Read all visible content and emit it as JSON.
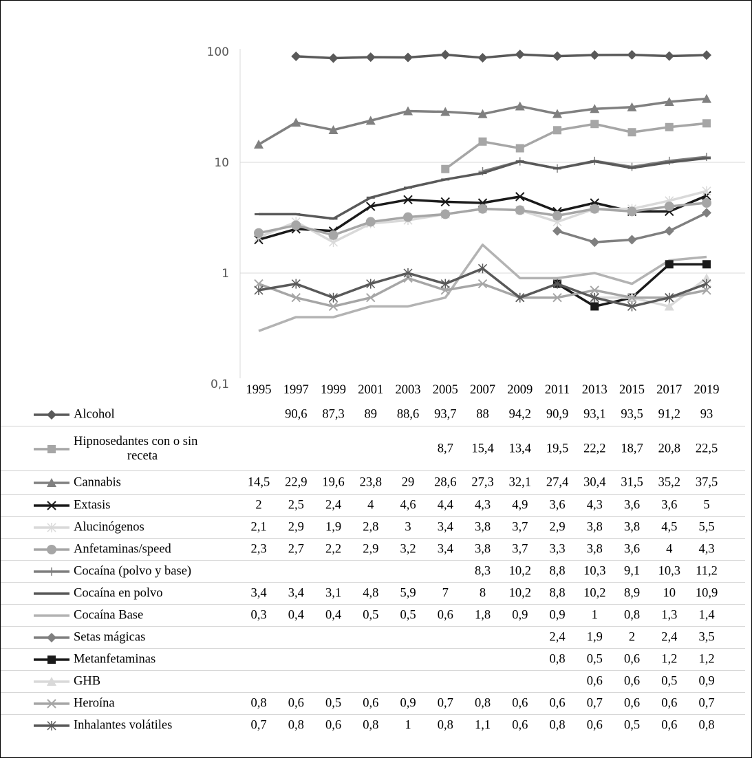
{
  "chart_data": {
    "type": "line",
    "y_scale": "log",
    "ylim": [
      0.1,
      100
    ],
    "ytick_labels": [
      "100",
      "10",
      "1",
      "0,1"
    ],
    "x": [
      "1995",
      "1997",
      "1999",
      "2001",
      "2003",
      "2005",
      "2007",
      "2009",
      "2011",
      "2013",
      "2015",
      "2017",
      "2019"
    ],
    "legend_placement": "data-table-below",
    "series": [
      {
        "name": "Alcohol",
        "color": "#595959",
        "marker": "diamond",
        "values": [
          null,
          90.6,
          87.3,
          89,
          88.6,
          93.7,
          88,
          94.2,
          90.9,
          93.1,
          93.5,
          91.2,
          93
        ],
        "labels": [
          "",
          "90,6",
          "87,3",
          "89",
          "88,6",
          "93,7",
          "88",
          "94,2",
          "90,9",
          "93,1",
          "93,5",
          "91,2",
          "93"
        ]
      },
      {
        "name": "Hipnosedantes con o sin receta",
        "name_lines": [
          "Hipnosedantes con o sin",
          "receta"
        ],
        "color": "#a6a6a6",
        "marker": "square",
        "values": [
          null,
          null,
          null,
          null,
          null,
          8.7,
          15.4,
          13.4,
          19.5,
          22.2,
          18.7,
          20.8,
          22.5
        ],
        "labels": [
          "",
          "",
          "",
          "",
          "",
          "8,7",
          "15,4",
          "13,4",
          "19,5",
          "22,2",
          "18,7",
          "20,8",
          "22,5"
        ]
      },
      {
        "name": "Cannabis",
        "color": "#808080",
        "marker": "triangle",
        "values": [
          14.5,
          22.9,
          19.6,
          23.8,
          29,
          28.6,
          27.3,
          32.1,
          27.4,
          30.4,
          31.5,
          35.2,
          37.5
        ],
        "labels": [
          "14,5",
          "22,9",
          "19,6",
          "23,8",
          "29",
          "28,6",
          "27,3",
          "32,1",
          "27,4",
          "30,4",
          "31,5",
          "35,2",
          "37,5"
        ]
      },
      {
        "name": "Extasis",
        "color": "#1a1a1a",
        "marker": "x",
        "values": [
          2,
          2.5,
          2.4,
          4,
          4.6,
          4.4,
          4.3,
          4.9,
          3.6,
          4.3,
          3.6,
          3.6,
          5
        ],
        "labels": [
          "2",
          "2,5",
          "2,4",
          "4",
          "4,6",
          "4,4",
          "4,3",
          "4,9",
          "3,6",
          "4,3",
          "3,6",
          "3,6",
          "5"
        ]
      },
      {
        "name": "Alucinógenos",
        "color": "#d9d9d9",
        "marker": "asterisk",
        "values": [
          2.1,
          2.9,
          1.9,
          2.8,
          3,
          3.4,
          3.8,
          3.7,
          2.9,
          3.8,
          3.8,
          4.5,
          5.5
        ],
        "labels": [
          "2,1",
          "2,9",
          "1,9",
          "2,8",
          "3",
          "3,4",
          "3,8",
          "3,7",
          "2,9",
          "3,8",
          "3,8",
          "4,5",
          "5,5"
        ]
      },
      {
        "name": "Anfetaminas/speed",
        "color": "#a6a6a6",
        "marker": "circle",
        "values": [
          2.3,
          2.7,
          2.2,
          2.9,
          3.2,
          3.4,
          3.8,
          3.7,
          3.3,
          3.8,
          3.6,
          4,
          4.3
        ],
        "labels": [
          "2,3",
          "2,7",
          "2,2",
          "2,9",
          "3,2",
          "3,4",
          "3,8",
          "3,7",
          "3,3",
          "3,8",
          "3,6",
          "4",
          "4,3"
        ]
      },
      {
        "name": "Cocaína (polvo y base)",
        "color": "#7f7f7f",
        "marker": "plus",
        "values": [
          null,
          null,
          null,
          null,
          null,
          null,
          8.3,
          10.2,
          8.8,
          10.3,
          9.1,
          10.3,
          11.2
        ],
        "labels": [
          "",
          "",
          "",
          "",
          "",
          "",
          "8,3",
          "10,2",
          "8,8",
          "10,3",
          "9,1",
          "10,3",
          "11,2"
        ]
      },
      {
        "name": "Cocaína en polvo",
        "color": "#595959",
        "marker": "dash",
        "values": [
          3.4,
          3.4,
          3.1,
          4.8,
          5.9,
          7,
          8,
          10.2,
          8.8,
          10.2,
          8.9,
          10,
          10.9
        ],
        "labels": [
          "3,4",
          "3,4",
          "3,1",
          "4,8",
          "5,9",
          "7",
          "8",
          "10,2",
          "8,8",
          "10,2",
          "8,9",
          "10",
          "10,9"
        ]
      },
      {
        "name": "Cocaína Base",
        "color": "#b3b3b3",
        "marker": "none",
        "values": [
          0.3,
          0.4,
          0.4,
          0.5,
          0.5,
          0.6,
          1.8,
          0.9,
          0.9,
          1,
          0.8,
          1.3,
          1.4
        ],
        "labels": [
          "0,3",
          "0,4",
          "0,4",
          "0,5",
          "0,5",
          "0,6",
          "1,8",
          "0,9",
          "0,9",
          "1",
          "0,8",
          "1,3",
          "1,4"
        ]
      },
      {
        "name": "Setas mágicas",
        "color": "#7f7f7f",
        "marker": "diamond",
        "values": [
          null,
          null,
          null,
          null,
          null,
          null,
          null,
          null,
          2.4,
          1.9,
          2,
          2.4,
          3.5
        ],
        "labels": [
          "",
          "",
          "",
          "",
          "",
          "",
          "",
          "",
          "2,4",
          "1,9",
          "2",
          "2,4",
          "3,5"
        ]
      },
      {
        "name": "Metanfetaminas",
        "color": "#1a1a1a",
        "marker": "square",
        "values": [
          null,
          null,
          null,
          null,
          null,
          null,
          null,
          null,
          0.8,
          0.5,
          0.6,
          1.2,
          1.2
        ],
        "labels": [
          "",
          "",
          "",
          "",
          "",
          "",
          "",
          "",
          "0,8",
          "0,5",
          "0,6",
          "1,2",
          "1,2"
        ]
      },
      {
        "name": "GHB",
        "color": "#d9d9d9",
        "marker": "triangle",
        "values": [
          null,
          null,
          null,
          null,
          null,
          null,
          null,
          null,
          null,
          0.6,
          0.6,
          0.5,
          0.9
        ],
        "labels": [
          "",
          "",
          "",
          "",
          "",
          "",
          "",
          "",
          "",
          "0,6",
          "0,6",
          "0,5",
          "0,9"
        ]
      },
      {
        "name": "Heroína",
        "color": "#a6a6a6",
        "marker": "x",
        "values": [
          0.8,
          0.6,
          0.5,
          0.6,
          0.9,
          0.7,
          0.8,
          0.6,
          0.6,
          0.7,
          0.6,
          0.6,
          0.7
        ],
        "labels": [
          "0,8",
          "0,6",
          "0,5",
          "0,6",
          "0,9",
          "0,7",
          "0,8",
          "0,6",
          "0,6",
          "0,7",
          "0,6",
          "0,6",
          "0,7"
        ]
      },
      {
        "name": "Inhalantes volátiles",
        "color": "#595959",
        "marker": "asterisk",
        "values": [
          0.7,
          0.8,
          0.6,
          0.8,
          1,
          0.8,
          1.1,
          0.6,
          0.8,
          0.6,
          0.5,
          0.6,
          0.8
        ],
        "labels": [
          "0,7",
          "0,8",
          "0,6",
          "0,8",
          "1",
          "0,8",
          "1,1",
          "0,6",
          "0,8",
          "0,6",
          "0,5",
          "0,6",
          "0,8"
        ]
      }
    ]
  }
}
